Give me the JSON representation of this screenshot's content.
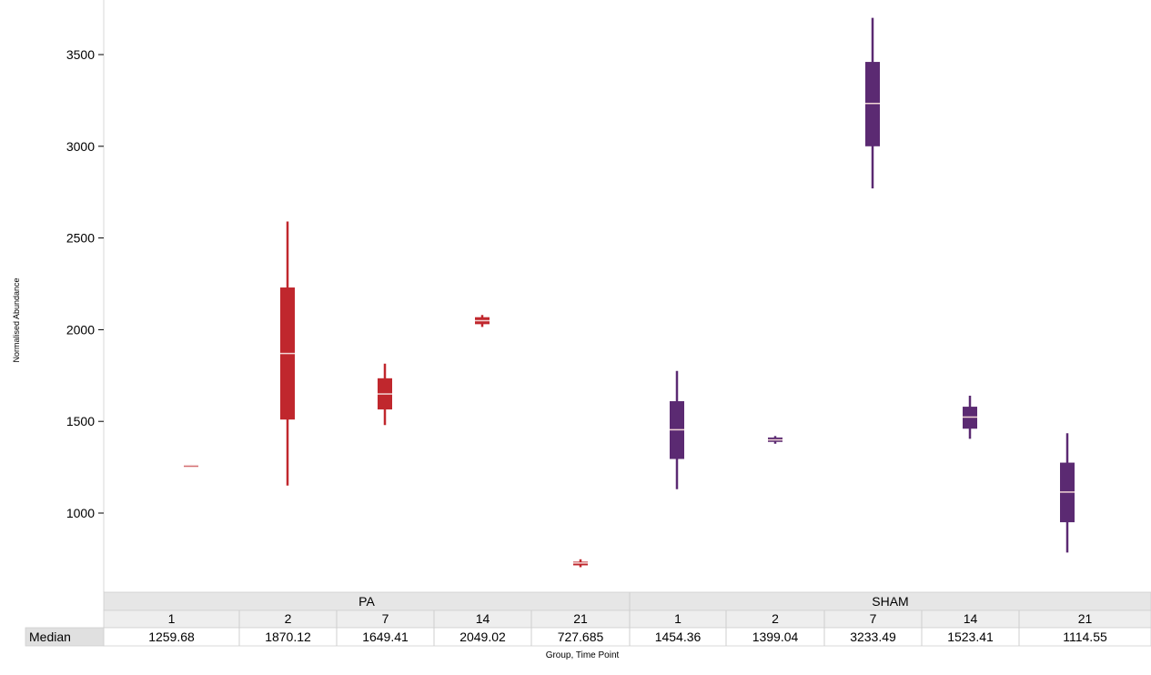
{
  "chart_data": {
    "type": "box",
    "ylabel": "Normalised Abundance",
    "xlabel": "Group, Time Point",
    "yticks": [
      1000,
      1500,
      2000,
      2500,
      3000,
      3500
    ],
    "ylim": [
      580,
      3700
    ],
    "grid": false,
    "colors": {
      "PA": "#c0272d",
      "SHAM": "#5b2a72"
    },
    "groups": [
      {
        "name": "PA",
        "boxes": [
          {
            "time": "1",
            "min": 1258,
            "q1": 1259,
            "median": 1259.68,
            "q3": 1262,
            "max": 1263,
            "median_label": "1259.68"
          },
          {
            "time": "2",
            "min": 1150,
            "q1": 1510,
            "median": 1870.12,
            "q3": 2230,
            "max": 2590,
            "median_label": "1870.12"
          },
          {
            "time": "7",
            "min": 1480,
            "q1": 1565,
            "median": 1649.41,
            "q3": 1735,
            "max": 1815,
            "median_label": "1649.41"
          },
          {
            "time": "14",
            "min": 2015,
            "q1": 2030,
            "median": 2049.02,
            "q3": 2068,
            "max": 2080,
            "median_label": "2049.02"
          },
          {
            "time": "21",
            "min": 705,
            "q1": 715,
            "median": 727.685,
            "q3": 735,
            "max": 748,
            "median_label": "727.685"
          }
        ]
      },
      {
        "name": "SHAM",
        "boxes": [
          {
            "time": "1",
            "min": 1130,
            "q1": 1295,
            "median": 1454.36,
            "q3": 1610,
            "max": 1775,
            "median_label": "1454.36"
          },
          {
            "time": "2",
            "min": 1378,
            "q1": 1388,
            "median": 1399.04,
            "q3": 1412,
            "max": 1420,
            "median_label": "1399.04"
          },
          {
            "time": "7",
            "min": 2770,
            "q1": 3000,
            "median": 3233.49,
            "q3": 3460,
            "max": 3700,
            "median_label": "3233.49"
          },
          {
            "time": "14",
            "min": 1405,
            "q1": 1460,
            "median": 1523.41,
            "q3": 1580,
            "max": 1640,
            "median_label": "1523.41"
          },
          {
            "time": "21",
            "min": 785,
            "q1": 950,
            "median": 1114.55,
            "q3": 1275,
            "max": 1435,
            "median_label": "1114.55"
          }
        ]
      }
    ],
    "table": {
      "row_label": "Median"
    }
  }
}
